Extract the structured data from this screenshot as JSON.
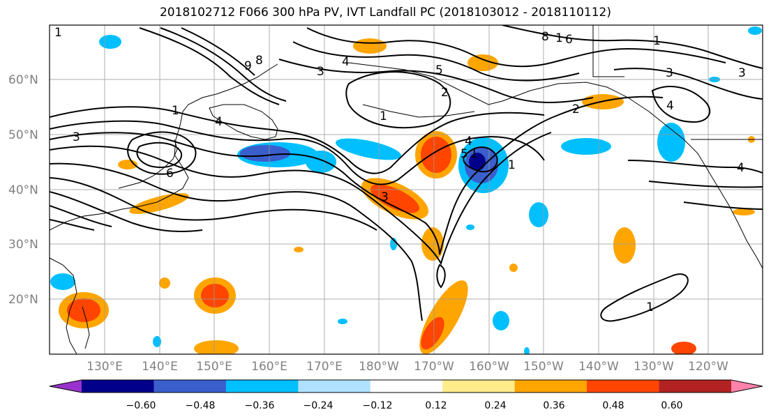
{
  "title": "2018102712 F066 300 hPa PV, IVT Landfall PC (2018103012 - 2018110112)",
  "lat_labels": [
    "60°N",
    "50°N",
    "40°N",
    "30°N",
    "20°N"
  ],
  "lon_labels": [
    "130°E",
    "140°E",
    "150°E",
    "160°E",
    "170°E",
    "180°W",
    "170°W",
    "160°W",
    "150°W",
    "140°W",
    "130°W",
    "120°W"
  ],
  "colorbar": {
    "tick_labels": [
      "−0.60",
      "−0.48",
      "−0.36",
      "−0.24",
      "−0.12",
      "0.12",
      "0.24",
      "0.36",
      "0.48",
      "0.60"
    ],
    "colors": [
      "#9932CC",
      "#00008B",
      "#3A5FCD",
      "#00BFFF",
      "#B0E2FF",
      "#FFFFFF",
      "#FFEC8B",
      "#FFA500",
      "#FF4500",
      "#B22222",
      "#FF82AB"
    ]
  },
  "contour_labels": [
    "1",
    "3",
    "4",
    "1",
    "6",
    "8",
    "9",
    "3",
    "4",
    "5",
    "2",
    "1",
    "8",
    "1",
    "6",
    "1",
    "3",
    "3",
    "2",
    "4",
    "1",
    "4",
    "5",
    "1",
    "3",
    "4",
    "1"
  ],
  "map_colors": {
    "positive_light": "#FFEC8B",
    "positive_mid": "#FFA500",
    "positive_strong": "#FF4500",
    "positive_max": "#B22222",
    "negative_light": "#B0E2FF",
    "negative_mid": "#00BFFF",
    "negative_strong": "#3A5FCD",
    "negative_max": "#00008B",
    "grid": "#999999",
    "coast": "#000000"
  }
}
